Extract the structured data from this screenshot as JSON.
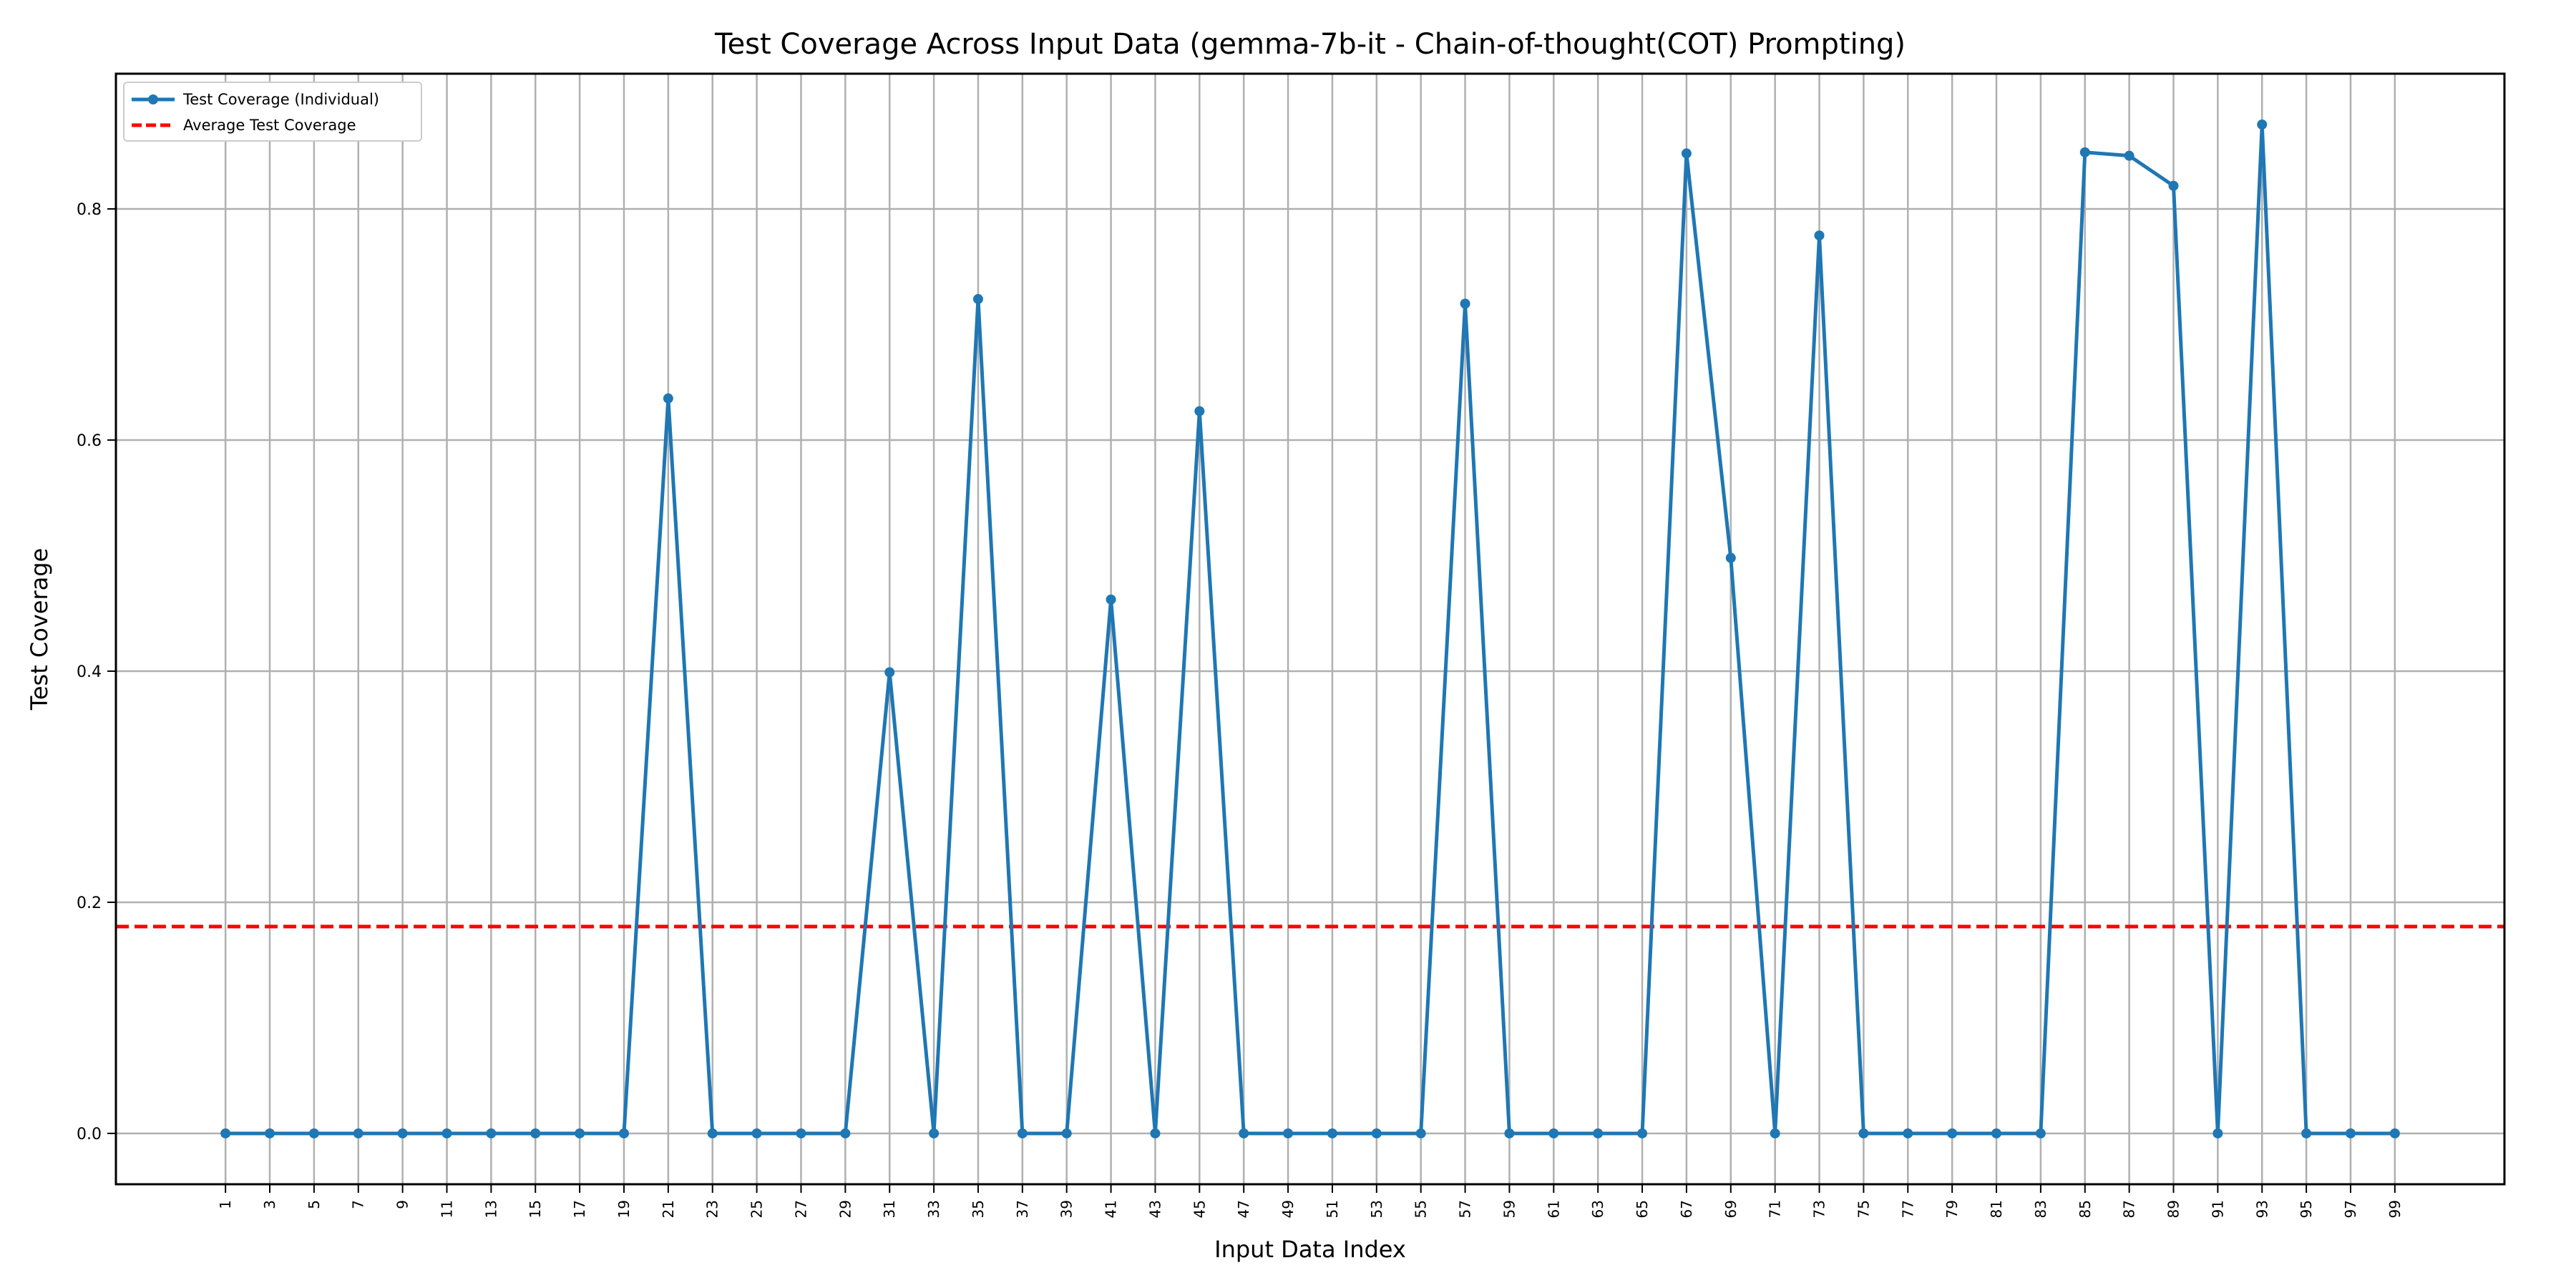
{
  "chart_data": {
    "type": "line",
    "title": "Test Coverage Across Input Data (gemma-7b-it - Chain-of-thought(COT) Prompting)",
    "xlabel": "Input Data Index",
    "ylabel": "Test Coverage",
    "x": [
      1,
      3,
      5,
      7,
      9,
      11,
      13,
      15,
      17,
      19,
      21,
      23,
      25,
      27,
      29,
      31,
      33,
      35,
      37,
      39,
      41,
      43,
      45,
      47,
      49,
      51,
      53,
      55,
      57,
      59,
      61,
      63,
      65,
      67,
      69,
      71,
      73,
      75,
      77,
      79,
      81,
      83,
      85,
      87,
      89,
      91,
      93,
      95,
      97,
      99
    ],
    "x_tick_labels": [
      "1",
      "3",
      "5",
      "7",
      "9",
      "11",
      "13",
      "15",
      "17",
      "19",
      "21",
      "23",
      "25",
      "27",
      "29",
      "31",
      "33",
      "35",
      "37",
      "39",
      "41",
      "43",
      "45",
      "47",
      "49",
      "51",
      "53",
      "55",
      "57",
      "59",
      "61",
      "63",
      "65",
      "67",
      "69",
      "71",
      "73",
      "75",
      "77",
      "79",
      "81",
      "83",
      "85",
      "87",
      "89",
      "91",
      "93",
      "95",
      "97",
      "99"
    ],
    "y_ticks": [
      0.0,
      0.2,
      0.4,
      0.6,
      0.8
    ],
    "y_tick_labels": [
      "0.0",
      "0.2",
      "0.4",
      "0.6",
      "0.8"
    ],
    "xlim": [
      -3.95,
      103.95
    ],
    "ylim": [
      -0.044,
      0.917
    ],
    "grid": true,
    "legend_position": "top-left",
    "series": [
      {
        "name": "Test Coverage (Individual)",
        "color": "#1f77b4",
        "marker": "circle",
        "values": [
          0,
          0,
          0,
          0,
          0,
          0,
          0,
          0,
          0,
          0,
          0.636,
          0,
          0,
          0,
          0,
          0.399,
          0,
          0.722,
          0,
          0,
          0.462,
          0,
          0.625,
          0,
          0,
          0,
          0,
          0,
          0.718,
          0,
          0,
          0,
          0,
          0.848,
          0.498,
          0,
          0.777,
          0,
          0,
          0,
          0,
          0,
          0.849,
          0.846,
          0.82,
          0,
          0.873,
          0,
          0,
          0
        ]
      }
    ],
    "reference_lines": [
      {
        "name": "Average Test Coverage",
        "color": "#ff0000",
        "style": "dashed",
        "y": 0.179
      }
    ]
  }
}
